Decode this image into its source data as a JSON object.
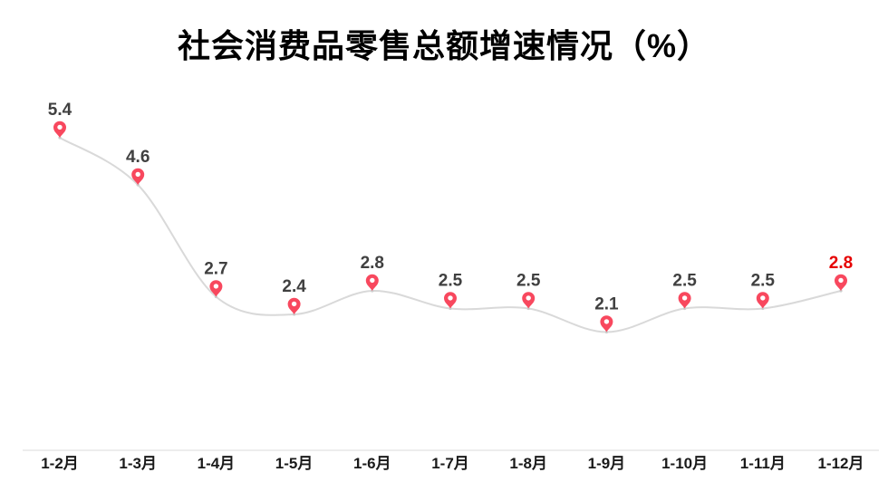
{
  "page": {
    "background": "#ffffff"
  },
  "chart_data": {
    "type": "line",
    "title": "社会消费品零售总额增速情况（%）",
    "categories": [
      "1-2月",
      "1-3月",
      "1-4月",
      "1-5月",
      "1-6月",
      "1-7月",
      "1-8月",
      "1-9月",
      "1-10月",
      "1-11月",
      "1-12月"
    ],
    "values": [
      5.4,
      4.6,
      2.7,
      2.4,
      2.8,
      2.5,
      2.5,
      2.1,
      2.5,
      2.5,
      2.8
    ],
    "series": [
      {
        "name": "社会消费品零售总额增速",
        "values": [
          5.4,
          4.6,
          2.7,
          2.4,
          2.8,
          2.5,
          2.5,
          2.1,
          2.5,
          2.5,
          2.8
        ]
      }
    ],
    "xlabel": "",
    "ylabel": "",
    "ylim": [
      0,
      6
    ],
    "y_axis_visible": false,
    "grid": false,
    "legend": false,
    "smooth_line": true,
    "marker_style": "map-pin",
    "data_labels": true,
    "highlight": {
      "index": 10,
      "value": "2.8",
      "color": "#e60000"
    },
    "colors": {
      "title": "#000000",
      "line": "#d9d9d9",
      "point_dot": "#cccccc",
      "marker": "#f8485e",
      "marker_hole": "#ffffff",
      "value_label": "#404040",
      "category_label": "#1a1a1a",
      "axis_line": "#e7e7e7"
    }
  }
}
